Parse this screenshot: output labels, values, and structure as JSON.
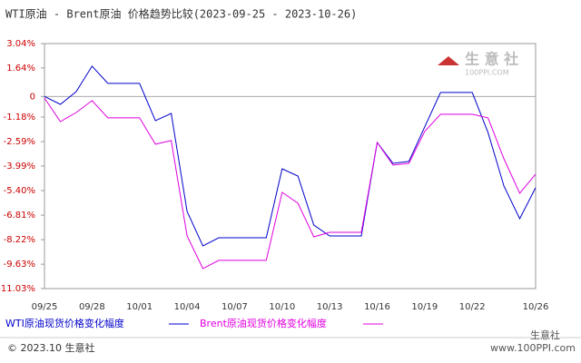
{
  "chart_data": {
    "type": "line",
    "title": "WTI原油 - Brent原油 价格趋势比较(2023-09-25 - 2023-10-26)",
    "categories": [
      "09/25",
      null,
      null,
      "09/28",
      null,
      null,
      "10/01",
      null,
      null,
      "10/04",
      null,
      null,
      "10/07",
      null,
      null,
      "10/10",
      null,
      null,
      "10/13",
      null,
      null,
      "10/16",
      null,
      null,
      "10/19",
      null,
      null,
      "10/22",
      null,
      null,
      null,
      "10/26"
    ],
    "series": [
      {
        "name": "WTI原油现货价格变化幅度",
        "color": "#0000cc",
        "values": [
          0.0,
          -0.45,
          0.28,
          1.74,
          0.75,
          0.75,
          0.75,
          -1.39,
          -0.97,
          -6.6,
          -8.58,
          -8.11,
          -8.11,
          -8.11,
          -8.11,
          -4.15,
          -4.57,
          -7.38,
          -8.01,
          -8.01,
          -8.01,
          -2.64,
          -3.84,
          -3.73,
          -1.75,
          0.23,
          0.23,
          0.23,
          -2.07,
          -5.14,
          -7.02,
          -5.24
        ]
      },
      {
        "name": "Brent原油现货价格变化幅度",
        "color": "#e000e0",
        "values": [
          -0.09,
          -1.44,
          -0.92,
          -0.24,
          -1.23,
          -1.23,
          -1.23,
          -2.74,
          -2.53,
          -8.01,
          -9.88,
          -9.41,
          -9.41,
          -9.41,
          -9.41,
          -5.5,
          -6.13,
          -8.06,
          -7.8,
          -7.8,
          -7.8,
          -2.64,
          -3.94,
          -3.84,
          -2.01,
          -1.02,
          -1.02,
          -1.02,
          -1.23,
          -3.58,
          -5.56,
          -4.46
        ]
      }
    ],
    "ylim": [
      -11.03,
      3.04
    ],
    "yticks": [
      {
        "value": 3.04,
        "label": "3.04%"
      },
      {
        "value": 1.64,
        "label": "1.64%"
      },
      0,
      {
        "value": -1.18,
        "label": "-1.18%"
      },
      {
        "value": -2.59,
        "label": "-2.59%"
      },
      {
        "value": -3.99,
        "label": "-3.99%"
      },
      {
        "value": -5.4,
        "label": "-5.40%"
      },
      {
        "value": -6.81,
        "label": "-6.81%"
      },
      {
        "value": -8.22,
        "label": "-8.22%"
      },
      {
        "value": -9.63,
        "label": "-9.63%"
      },
      {
        "value": -11.03,
        "label": "-11.03%"
      }
    ],
    "footer": "© 2023.10 生意社",
    "watermark": "生 意 社",
    "watermark_sub": "100PPI.COM",
    "source": "www.100PPI.com",
    "source_brand": "生意社"
  }
}
